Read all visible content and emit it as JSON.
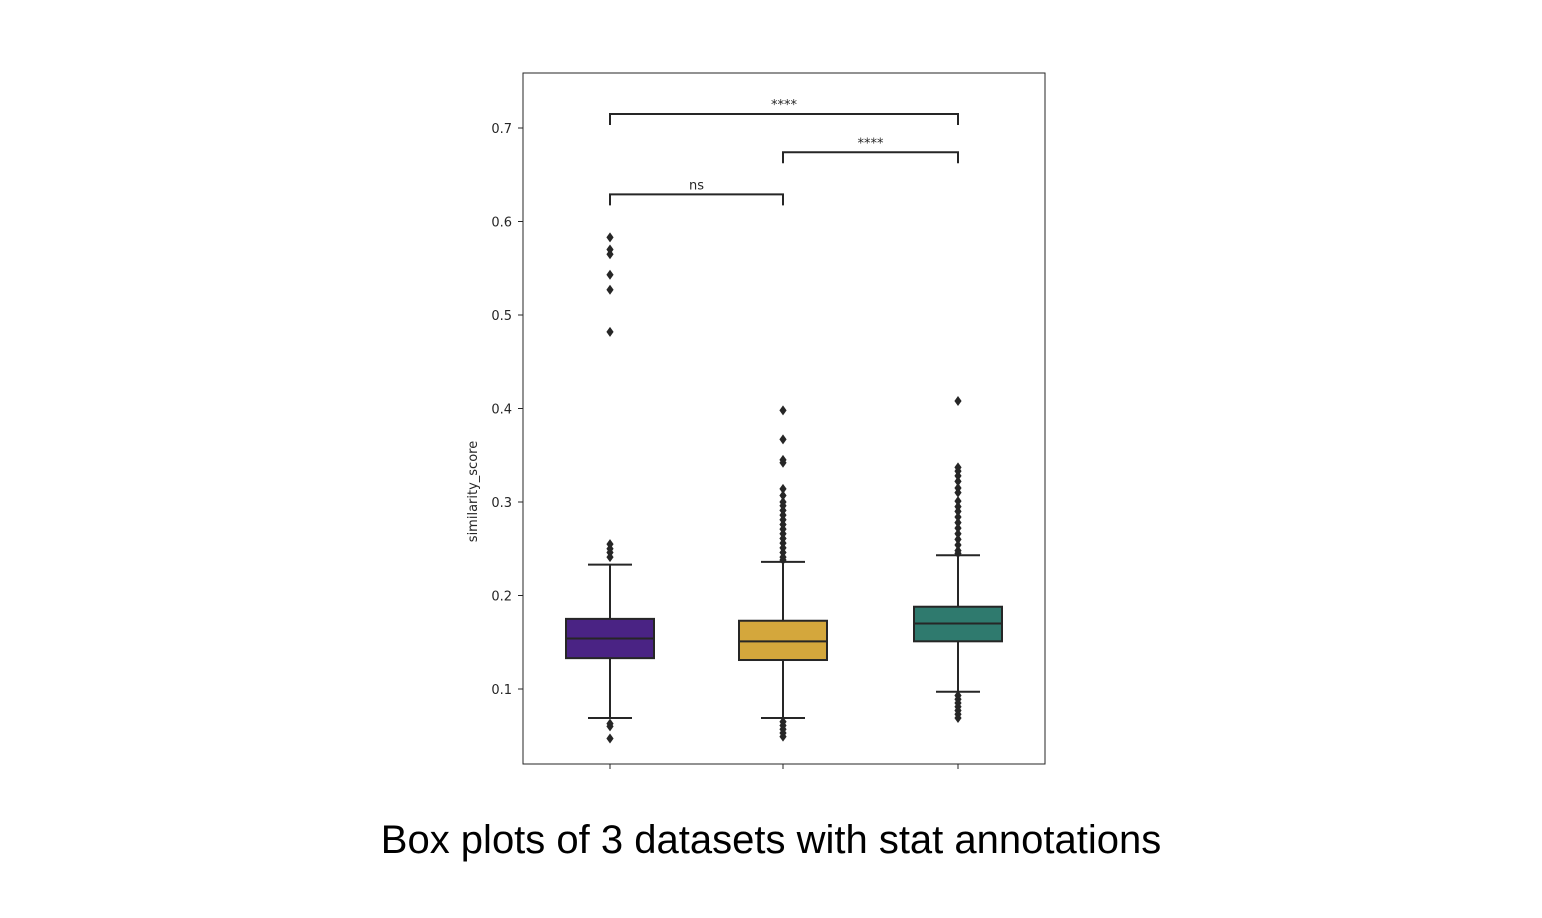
{
  "caption": "Box plots of 3 datasets with stat annotations",
  "chart_data": {
    "type": "box",
    "ylabel": "similarity_score",
    "xlabel": "",
    "ylim": [
      0.02,
      0.76
    ],
    "yticks": [
      "0.1",
      "0.2",
      "0.3",
      "0.4",
      "0.5",
      "0.6",
      "0.7"
    ],
    "grid": false,
    "legend": "none",
    "boxes": [
      {
        "color": "#4a2384",
        "q1": 0.133,
        "median": 0.154,
        "q3": 0.175,
        "whisker_low": 0.069,
        "whisker_high": 0.233,
        "outliers": [
          0.583,
          0.57,
          0.565,
          0.543,
          0.527,
          0.482,
          0.255,
          0.25,
          0.246,
          0.241,
          0.063,
          0.06,
          0.047
        ]
      },
      {
        "color": "#d4a73c",
        "q1": 0.131,
        "median": 0.151,
        "q3": 0.173,
        "whisker_low": 0.069,
        "whisker_high": 0.236,
        "outliers": [
          0.398,
          0.367,
          0.345,
          0.342,
          0.314,
          0.307,
          0.3,
          0.296,
          0.291,
          0.286,
          0.281,
          0.276,
          0.271,
          0.266,
          0.261,
          0.256,
          0.251,
          0.246,
          0.241,
          0.238,
          0.065,
          0.061,
          0.057,
          0.053,
          0.049
        ]
      },
      {
        "color": "#2f7a6e",
        "q1": 0.151,
        "median": 0.17,
        "q3": 0.188,
        "whisker_low": 0.097,
        "whisker_high": 0.243,
        "outliers": [
          0.408,
          0.337,
          0.333,
          0.328,
          0.322,
          0.315,
          0.31,
          0.301,
          0.295,
          0.29,
          0.284,
          0.278,
          0.272,
          0.266,
          0.26,
          0.254,
          0.248,
          0.245,
          0.093,
          0.089,
          0.085,
          0.081,
          0.077,
          0.073,
          0.069
        ]
      }
    ],
    "annotations": [
      {
        "from": 0,
        "to": 1,
        "y": 0.629,
        "label": "ns"
      },
      {
        "from": 1,
        "to": 2,
        "y": 0.674,
        "label": "****"
      },
      {
        "from": 0,
        "to": 2,
        "y": 0.715,
        "label": "****"
      }
    ]
  }
}
